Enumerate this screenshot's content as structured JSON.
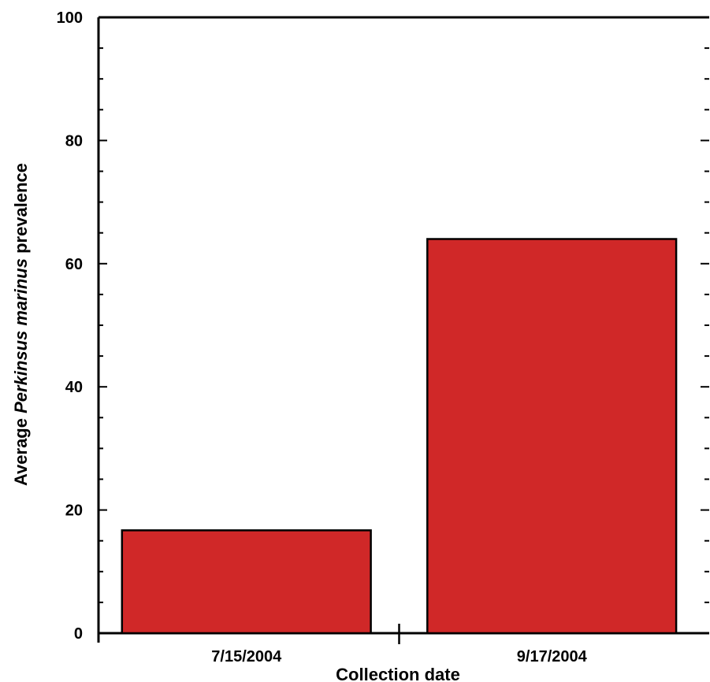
{
  "chart_data": {
    "type": "bar",
    "categories": [
      "7/15/2004",
      "9/17/2004"
    ],
    "values": [
      16.7,
      64.0
    ],
    "xlabel": "Collection date",
    "ylabel": {
      "prefix": "Average ",
      "italic": "Perkinsus marinus",
      "suffix": " prevalence"
    },
    "ylim": [
      0,
      100
    ],
    "yticks": [
      "0",
      "20",
      "40",
      "60",
      "80",
      "100"
    ],
    "grid": false,
    "legend": "none",
    "bar_color": "#d02828",
    "bar_edge_color": "#000000"
  }
}
